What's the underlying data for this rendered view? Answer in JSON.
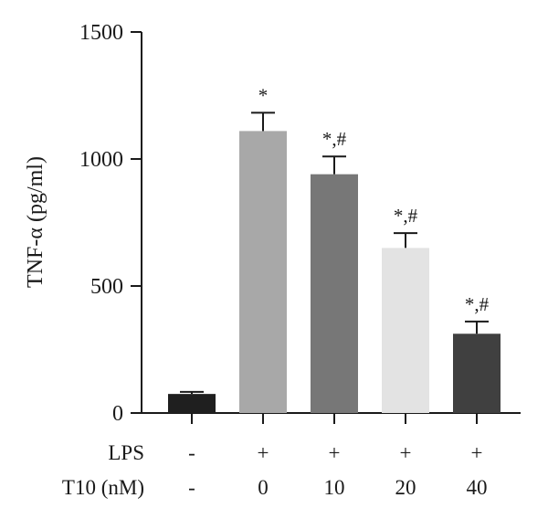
{
  "chart_data": {
    "type": "bar",
    "title": "",
    "xlabel": "",
    "ylabel": "TNF-α (pg/ml)",
    "ylim": [
      0,
      1500
    ],
    "yticks": [
      0,
      500,
      1000,
      1500
    ],
    "grid": false,
    "legend": "none",
    "values": [
      75,
      1110,
      940,
      650,
      312
    ],
    "errors": [
      8,
      72,
      70,
      58,
      48
    ],
    "colors": [
      "#1f1f1f",
      "#a8a8a8",
      "#777777",
      "#e3e3e3",
      "#404040"
    ],
    "annotations": [
      "",
      "*",
      "*,#",
      "*,#",
      "*,#"
    ],
    "conditions": [
      {
        "label": "LPS",
        "values": [
          "-",
          "+",
          "+",
          "+",
          "+"
        ]
      },
      {
        "label": "T10 (nM)",
        "values": [
          "-",
          "0",
          "10",
          "20",
          "40"
        ]
      }
    ]
  }
}
